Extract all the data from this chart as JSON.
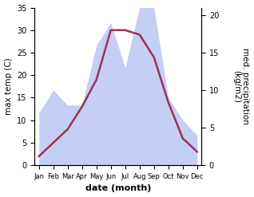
{
  "months": [
    "Jan",
    "Feb",
    "Mar",
    "Apr",
    "May",
    "Jun",
    "Jul",
    "Aug",
    "Sep",
    "Oct",
    "Nov",
    "Dec"
  ],
  "max_temp": [
    2,
    5,
    8,
    13,
    19,
    30,
    30,
    29,
    24,
    14,
    6,
    3
  ],
  "precipitation": [
    7,
    10,
    8,
    8,
    16,
    19,
    13,
    21,
    21,
    9,
    6,
    4
  ],
  "temp_color": "#993355",
  "precip_fill_color": "#c5cef5",
  "temp_ylim": [
    0,
    35
  ],
  "precip_ylim": [
    0,
    21
  ],
  "temp_yticks": [
    0,
    5,
    10,
    15,
    20,
    25,
    30,
    35
  ],
  "precip_yticks": [
    0,
    5,
    10,
    15,
    20
  ],
  "xlabel": "date (month)",
  "ylabel_left": "max temp (C)",
  "ylabel_right": "med. precipitation\n(kg/m2)",
  "bg_color": "#ffffff",
  "line_width": 1.8
}
